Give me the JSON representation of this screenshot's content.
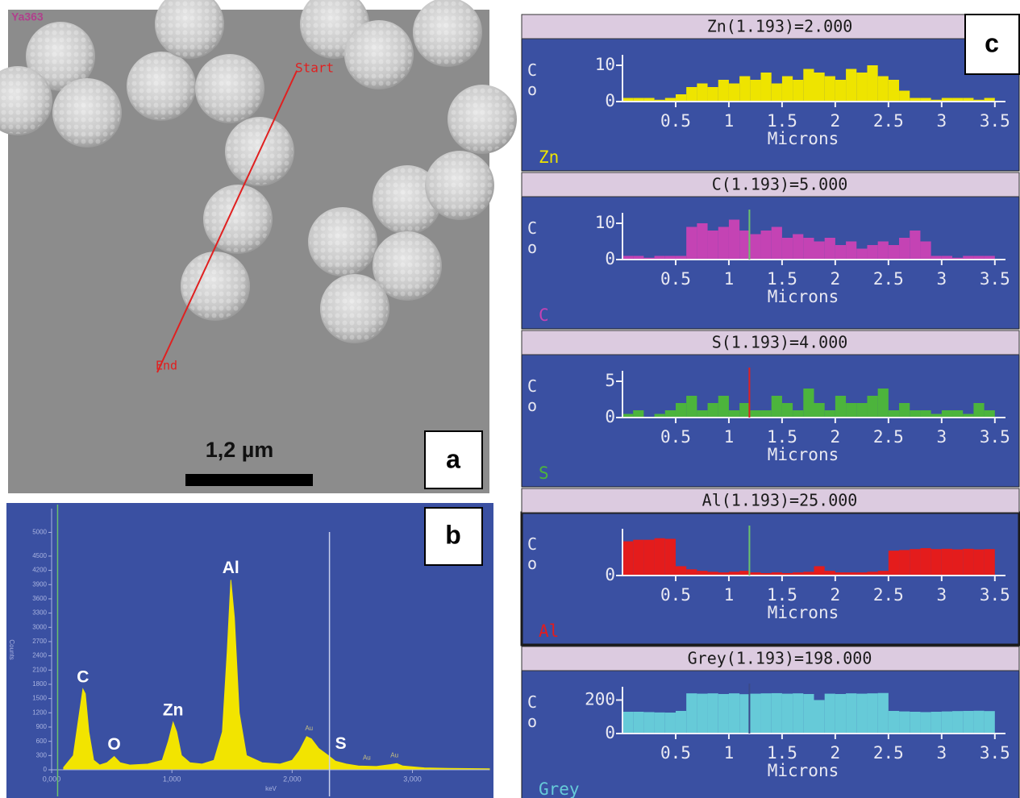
{
  "panel_a": {
    "label": "a",
    "image_tag": "Ya363",
    "line_start": "Start",
    "line_end": "End",
    "scale_bar": "1,2 µm"
  },
  "panel_labels": [
    "b",
    "c"
  ],
  "chart_data": [
    {
      "type": "area",
      "xlabel": "keV",
      "ylabel": "Counts",
      "x": [
        0.1,
        0.18,
        0.22,
        0.26,
        0.28,
        0.31,
        0.35,
        0.4,
        0.46,
        0.52,
        0.57,
        0.65,
        0.8,
        0.92,
        0.97,
        1.01,
        1.04,
        1.08,
        1.15,
        1.25,
        1.35,
        1.42,
        1.46,
        1.49,
        1.52,
        1.56,
        1.62,
        1.75,
        1.9,
        2.0,
        2.06,
        2.12,
        2.16,
        2.22,
        2.3,
        2.36,
        2.45,
        2.55,
        2.7,
        2.82,
        2.87,
        2.92,
        3.1,
        3.3,
        3.64
      ],
      "series": [
        {
          "color": "#f2e400",
          "values": [
            50,
            300,
            1000,
            1700,
            1600,
            800,
            200,
            100,
            150,
            280,
            150,
            100,
            120,
            200,
            600,
            1000,
            800,
            300,
            150,
            120,
            200,
            800,
            2500,
            4000,
            3200,
            1200,
            300,
            150,
            120,
            200,
            400,
            700,
            650,
            450,
            300,
            180,
            120,
            80,
            70,
            110,
            130,
            80,
            40,
            30,
            20
          ]
        }
      ],
      "xlim": [
        0,
        3.64
      ],
      "xticks": [
        {
          "value": 0,
          "label": "0,000"
        },
        {
          "value": 1,
          "label": "1,000"
        },
        {
          "value": 2,
          "label": "2,000"
        },
        {
          "value": 3,
          "label": "3,000"
        }
      ],
      "ylim": [
        0,
        5500
      ],
      "yticks": [
        0,
        300,
        600,
        900,
        1200,
        1500,
        1800,
        2100,
        2400,
        2700,
        3000,
        3300,
        3600,
        3900,
        4200,
        4500,
        5000
      ],
      "marker_lines": [
        {
          "x": 0.05,
          "color": "#6cc26c"
        },
        {
          "x": 2.31,
          "color": "#c8d0ec"
        }
      ],
      "annotations": [
        {
          "text": "C",
          "x": 0.26,
          "y": 1700
        },
        {
          "text": "O",
          "x": 0.52,
          "y": 280
        },
        {
          "text": "Zn",
          "x": 1.01,
          "y": 1000
        },
        {
          "text": "Al",
          "x": 1.49,
          "y": 4000
        },
        {
          "text": "S",
          "x": 2.31,
          "y": 300
        }
      ],
      "minor_annotations": [
        {
          "text": "Au",
          "x": 2.14,
          "y": 700
        },
        {
          "text": "Au",
          "x": 2.62,
          "y": 80
        },
        {
          "text": "Au",
          "x": 2.85,
          "y": 130
        }
      ]
    },
    {
      "type": "bar",
      "title": "Zn(1.193)=2.000",
      "xlabel": "Microns",
      "ylabel": "Co",
      "x": [
        0.05,
        0.15,
        0.25,
        0.35,
        0.45,
        0.55,
        0.65,
        0.75,
        0.85,
        0.95,
        1.05,
        1.15,
        1.25,
        1.35,
        1.45,
        1.55,
        1.65,
        1.75,
        1.85,
        1.95,
        2.05,
        2.15,
        2.25,
        2.35,
        2.45,
        2.55,
        2.65,
        2.75,
        2.85,
        2.95,
        3.05,
        3.15,
        3.25,
        3.35,
        3.45
      ],
      "series": [
        {
          "name": "Zn",
          "color": "#eee400",
          "values": [
            1,
            1,
            1,
            0.5,
            1,
            2,
            4,
            5,
            4,
            6,
            5,
            7,
            6,
            8,
            5,
            7,
            6,
            9,
            8,
            7,
            6,
            9,
            8,
            10,
            7,
            6,
            3,
            1,
            1,
            0.5,
            1,
            1,
            1,
            0.5,
            1
          ]
        }
      ],
      "xlim": [
        0,
        3.6
      ],
      "xticks": [
        0.5,
        1,
        1.5,
        2,
        2.5,
        3,
        3.5
      ],
      "ylim": [
        0,
        12
      ],
      "yticks": [
        0,
        10
      ]
    },
    {
      "type": "bar",
      "title": "C(1.193)=5.000",
      "xlabel": "Microns",
      "ylabel": "Co",
      "x": [
        0.05,
        0.15,
        0.25,
        0.35,
        0.45,
        0.55,
        0.65,
        0.75,
        0.85,
        0.95,
        1.05,
        1.15,
        1.25,
        1.35,
        1.45,
        1.55,
        1.65,
        1.75,
        1.85,
        1.95,
        2.05,
        2.15,
        2.25,
        2.35,
        2.45,
        2.55,
        2.65,
        2.75,
        2.85,
        2.95,
        3.05,
        3.15,
        3.25,
        3.35,
        3.45
      ],
      "series": [
        {
          "name": "C",
          "color": "#c443b4",
          "values": [
            1,
            1,
            0.5,
            1,
            1,
            1,
            9,
            10,
            8,
            9,
            11,
            8,
            7,
            8,
            9,
            6,
            7,
            6,
            5,
            6,
            4,
            5,
            3,
            4,
            5,
            4,
            6,
            8,
            5,
            1,
            1,
            0.5,
            1,
            1,
            1
          ]
        }
      ],
      "xlim": [
        0,
        3.6
      ],
      "xticks": [
        0.5,
        1,
        1.5,
        2,
        2.5,
        3,
        3.5
      ],
      "ylim": [
        0,
        12
      ],
      "yticks": [
        0,
        10
      ],
      "cursor": 1.193,
      "cursor_color": "#6cc26c"
    },
    {
      "type": "bar",
      "title": "S(1.193)=4.000",
      "xlabel": "Microns",
      "ylabel": "Co",
      "x": [
        0.05,
        0.15,
        0.25,
        0.35,
        0.45,
        0.55,
        0.65,
        0.75,
        0.85,
        0.95,
        1.05,
        1.15,
        1.25,
        1.35,
        1.45,
        1.55,
        1.65,
        1.75,
        1.85,
        1.95,
        2.05,
        2.15,
        2.25,
        2.35,
        2.45,
        2.55,
        2.65,
        2.75,
        2.85,
        2.95,
        3.05,
        3.15,
        3.25,
        3.35,
        3.45
      ],
      "series": [
        {
          "name": "S",
          "color": "#4cb43c",
          "values": [
            0.5,
            1,
            0,
            0.5,
            1,
            2,
            3,
            1,
            2,
            3,
            1,
            2,
            1,
            1,
            3,
            2,
            1,
            4,
            2,
            1,
            3,
            2,
            2,
            3,
            4,
            1,
            2,
            1,
            1,
            0.5,
            1,
            1,
            0.5,
            2,
            1
          ]
        }
      ],
      "xlim": [
        0,
        3.6
      ],
      "xticks": [
        0.5,
        1,
        1.5,
        2,
        2.5,
        3,
        3.5
      ],
      "ylim": [
        0,
        6
      ],
      "yticks": [
        0,
        5
      ],
      "cursor": 1.193,
      "cursor_color": "#e02020"
    },
    {
      "type": "bar",
      "title": "Al(1.193)=25.000",
      "xlabel": "Microns",
      "ylabel": "Co",
      "x": [
        0.05,
        0.15,
        0.25,
        0.35,
        0.45,
        0.55,
        0.65,
        0.75,
        0.85,
        0.95,
        1.05,
        1.15,
        1.25,
        1.35,
        1.45,
        1.55,
        1.65,
        1.75,
        1.85,
        1.95,
        2.05,
        2.15,
        2.25,
        2.35,
        2.45,
        2.55,
        2.65,
        2.75,
        2.85,
        2.95,
        3.05,
        3.15,
        3.25,
        3.35,
        3.45
      ],
      "series": [
        {
          "name": "Al",
          "color": "#e41c1c",
          "values": [
            110,
            115,
            115,
            120,
            118,
            30,
            20,
            15,
            12,
            10,
            12,
            15,
            10,
            8,
            10,
            8,
            10,
            12,
            30,
            15,
            10,
            10,
            10,
            12,
            15,
            80,
            82,
            85,
            88,
            85,
            86,
            84,
            86,
            84,
            85
          ]
        }
      ],
      "xlim": [
        0,
        3.6
      ],
      "xticks": [
        0.5,
        1,
        1.5,
        2,
        2.5,
        3,
        3.5
      ],
      "ylim": [
        0,
        140
      ],
      "yticks": [
        0
      ],
      "cursor": 1.193,
      "cursor_color": "#6cc26c"
    },
    {
      "type": "bar",
      "title": "Grey(1.193)=198.000",
      "xlabel": "Microns",
      "ylabel": "Co",
      "x": [
        0.05,
        0.15,
        0.25,
        0.35,
        0.45,
        0.55,
        0.65,
        0.75,
        0.85,
        0.95,
        1.05,
        1.15,
        1.25,
        1.35,
        1.45,
        1.55,
        1.65,
        1.75,
        1.85,
        1.95,
        2.05,
        2.15,
        2.25,
        2.35,
        2.45,
        2.55,
        2.65,
        2.75,
        2.85,
        2.95,
        3.05,
        3.15,
        3.25,
        3.35,
        3.45
      ],
      "series": [
        {
          "name": "Grey",
          "color": "#66cad8",
          "values": [
            130,
            130,
            128,
            126,
            125,
            135,
            240,
            238,
            240,
            236,
            240,
            235,
            238,
            240,
            241,
            238,
            240,
            236,
            200,
            238,
            236,
            240,
            238,
            240,
            242,
            135,
            132,
            130,
            128,
            130,
            132,
            134,
            135,
            136,
            134
          ]
        }
      ],
      "xlim": [
        0,
        3.6
      ],
      "xticks": [
        0.5,
        1,
        1.5,
        2,
        2.5,
        3,
        3.5
      ],
      "ylim": [
        0,
        260
      ],
      "yticks": [
        0,
        200
      ],
      "cursor": 1.193,
      "cursor_color": "#3a4a8a"
    }
  ]
}
